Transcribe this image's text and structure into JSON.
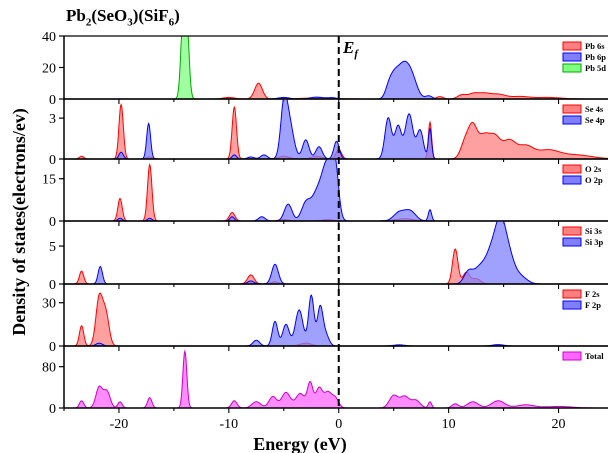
{
  "chart_data": {
    "type": "area",
    "title": {
      "base": "Pb",
      "sub1": "2",
      "mid1": "(SeO",
      "sub2": "3",
      "mid2": ")(SiF",
      "sub3": "6",
      "end": ")"
    },
    "xlabel": "Energy (eV)",
    "ylabel": "Density of states(electrons/ev)",
    "fermi_label": {
      "main": "E",
      "sub": "f"
    },
    "xlim": [
      -25,
      24.5
    ],
    "x_ticks": [
      -20,
      -10,
      0,
      10,
      20
    ],
    "panels": [
      {
        "ylim": [
          0,
          40
        ],
        "yticks": [
          0,
          20,
          40
        ],
        "series": [
          {
            "name": "Pb 6s",
            "color": "#ff0000",
            "fill": "#ff8080",
            "peaks": [
              [
                -7.3,
                10,
                0.35
              ],
              [
                -10,
                1,
                0.5
              ],
              [
                -2,
                0.6,
                1.5
              ],
              [
                9.2,
                1.5,
                0.3
              ],
              [
                11.2,
                2.5,
                0.4
              ],
              [
                12.3,
                3.5,
                0.5
              ],
              [
                13.3,
                2.8,
                0.5
              ],
              [
                14.5,
                3,
                0.7
              ],
              [
                16.5,
                1.5,
                0.8
              ],
              [
                19,
                1,
                1.2
              ]
            ]
          },
          {
            "name": "Pb 6p",
            "color": "#0000ff",
            "fill": "#8080ff",
            "peaks": [
              [
                5,
                12,
                0.4
              ],
              [
                5.8,
                18,
                0.5
              ],
              [
                6.6,
                14,
                0.5
              ],
              [
                4.5,
                5,
                0.3
              ],
              [
                8.2,
                2,
                0.3
              ],
              [
                -5,
                1,
                0.5
              ],
              [
                -2,
                1.2,
                0.6
              ],
              [
                -0.6,
                0.8,
                0.4
              ]
            ]
          },
          {
            "name": "Pb 5d",
            "color": "#00aa00",
            "fill": "#80ff80",
            "peaks": [
              [
                -14,
                45,
                0.15
              ],
              [
                -14.2,
                40,
                0.2
              ],
              [
                -13.8,
                40,
                0.2
              ]
            ]
          }
        ]
      },
      {
        "ylim": [
          0,
          4.4
        ],
        "yticks": [
          0,
          3
        ],
        "series": [
          {
            "name": "Se 4s",
            "color": "#ff0000",
            "fill": "#ff8080",
            "peaks": [
              [
                -19.8,
                4,
                0.2
              ],
              [
                -9.5,
                3.8,
                0.2
              ],
              [
                -23.4,
                0.2,
                0.2
              ],
              [
                -17.2,
                0.15,
                0.3
              ],
              [
                -5,
                0.2,
                0.5
              ],
              [
                -2,
                0.2,
                0.5
              ],
              [
                0,
                0.7,
                0.25
              ],
              [
                8.3,
                2.7,
                0.15
              ],
              [
                11.5,
                1.2,
                0.4
              ],
              [
                12.2,
                2.2,
                0.4
              ],
              [
                13.2,
                1.6,
                0.5
              ],
              [
                14.2,
                1.5,
                0.5
              ],
              [
                15.5,
                1.3,
                0.6
              ],
              [
                17,
                0.9,
                0.7
              ],
              [
                19,
                0.6,
                1
              ],
              [
                21.5,
                0.3,
                1.5
              ]
            ]
          },
          {
            "name": "Se 4p",
            "color": "#0000ff",
            "fill": "#8080ff",
            "peaks": [
              [
                -17.3,
                2.6,
                0.18
              ],
              [
                -19.8,
                0.5,
                0.2
              ],
              [
                -9.5,
                0.3,
                0.2
              ],
              [
                -5,
                3.4,
                0.3
              ],
              [
                -4.5,
                2.6,
                0.4
              ],
              [
                -3,
                1.4,
                0.3
              ],
              [
                -1.8,
                0.9,
                0.3
              ],
              [
                -0.2,
                1.3,
                0.25
              ],
              [
                -6.8,
                0.3,
                0.3
              ],
              [
                4.5,
                3,
                0.3
              ],
              [
                5.4,
                2.4,
                0.3
              ],
              [
                6.4,
                3.3,
                0.35
              ],
              [
                7.4,
                2.1,
                0.3
              ],
              [
                8.3,
                2.2,
                0.15
              ],
              [
                -8,
                0.15,
                0.3
              ]
            ]
          }
        ]
      },
      {
        "ylim": [
          0,
          22
        ],
        "yticks": [
          0,
          15
        ],
        "series": [
          {
            "name": "O 2s",
            "color": "#ff0000",
            "fill": "#ff8080",
            "peaks": [
              [
                -17.2,
                20,
                0.2
              ],
              [
                -19.9,
                8,
                0.2
              ],
              [
                -9.7,
                3,
                0.25
              ],
              [
                -5,
                0.5,
                0.5
              ],
              [
                -1,
                0.5,
                0.5
              ],
              [
                6,
                0.8,
                0.8
              ]
            ]
          },
          {
            "name": "O 2p",
            "color": "#0000ff",
            "fill": "#8080ff",
            "peaks": [
              [
                -1,
                20,
                0.5
              ],
              [
                -0.3,
                15,
                0.3
              ],
              [
                -2,
                9,
                0.5
              ],
              [
                -3,
                6,
                0.4
              ],
              [
                -4.6,
                6,
                0.35
              ],
              [
                -7,
                1.5,
                0.3
              ],
              [
                -9.7,
                1.5,
                0.2
              ],
              [
                -17.2,
                1,
                0.2
              ],
              [
                -19.9,
                1,
                0.2
              ],
              [
                5.5,
                3,
                0.5
              ],
              [
                6.5,
                3.5,
                0.5
              ],
              [
                8.3,
                4,
                0.15
              ]
            ]
          }
        ]
      },
      {
        "ylim": [
          0,
          8.3
        ],
        "yticks": [
          0,
          5
        ],
        "series": [
          {
            "name": "Si 3s",
            "color": "#ff0000",
            "fill": "#ff8080",
            "peaks": [
              [
                -23.4,
                1.7,
                0.2
              ],
              [
                -8,
                1.2,
                0.3
              ],
              [
                -5.8,
                0.3,
                0.3
              ],
              [
                10.6,
                4.6,
                0.25
              ],
              [
                11.6,
                1.5,
                0.3
              ],
              [
                12.5,
                0.7,
                0.4
              ]
            ]
          },
          {
            "name": "Si 3p",
            "color": "#0000ff",
            "fill": "#8080ff",
            "peaks": [
              [
                -21.7,
                2.3,
                0.2
              ],
              [
                -5.8,
                2.6,
                0.3
              ],
              [
                -8,
                0.4,
                0.3
              ],
              [
                11.8,
                1.6,
                0.4
              ],
              [
                12.8,
                2,
                0.5
              ],
              [
                13.8,
                3.5,
                0.5
              ],
              [
                14.7,
                7.5,
                0.5
              ],
              [
                15.5,
                3,
                0.5
              ],
              [
                16.5,
                1,
                0.6
              ]
            ]
          }
        ]
      },
      {
        "ylim": [
          0,
          43
        ],
        "yticks": [
          0,
          30
        ],
        "series": [
          {
            "name": "F 2s",
            "color": "#ff0000",
            "fill": "#ff8080",
            "peaks": [
              [
                -23.4,
                14,
                0.2
              ],
              [
                -21.8,
                33,
                0.3
              ],
              [
                -21.2,
                22,
                0.3
              ],
              [
                -3,
                2,
                0.5
              ]
            ]
          },
          {
            "name": "F 2p",
            "color": "#0000ff",
            "fill": "#8080ff",
            "peaks": [
              [
                -7.5,
                4,
                0.3
              ],
              [
                -5.8,
                17,
                0.25
              ],
              [
                -4.8,
                15,
                0.3
              ],
              [
                -3.6,
                25,
                0.35
              ],
              [
                -2.5,
                35,
                0.25
              ],
              [
                -1.7,
                26,
                0.25
              ],
              [
                -1.2,
                8,
                0.3
              ],
              [
                -21.8,
                2,
                0.3
              ],
              [
                5.5,
                0.8,
                0.5
              ],
              [
                14.5,
                1,
                0.5
              ]
            ]
          }
        ]
      },
      {
        "ylim": [
          0,
          120
        ],
        "yticks": [
          0,
          80
        ],
        "series": [
          {
            "name": "Total",
            "color": "#cc00cc",
            "fill": "#ff66ff",
            "peaks": [
              [
                -23.4,
                14,
                0.2
              ],
              [
                -21.8,
                40,
                0.3
              ],
              [
                -21.1,
                32,
                0.3
              ],
              [
                -19.9,
                12,
                0.2
              ],
              [
                -17.2,
                20,
                0.2
              ],
              [
                -14,
                110,
                0.18
              ],
              [
                -9.5,
                14,
                0.25
              ],
              [
                -7.5,
                12,
                0.4
              ],
              [
                -6,
                22,
                0.35
              ],
              [
                -4.8,
                30,
                0.4
              ],
              [
                -3.5,
                28,
                0.4
              ],
              [
                -2.6,
                48,
                0.25
              ],
              [
                -1.8,
                38,
                0.3
              ],
              [
                -1,
                30,
                0.35
              ],
              [
                -0.3,
                18,
                0.3
              ],
              [
                5,
                24,
                0.4
              ],
              [
                6,
                22,
                0.4
              ],
              [
                7,
                15,
                0.4
              ],
              [
                8.3,
                12,
                0.15
              ],
              [
                10.6,
                8,
                0.3
              ],
              [
                12.2,
                12,
                0.5
              ],
              [
                14.5,
                14,
                0.6
              ],
              [
                17,
                6,
                0.8
              ],
              [
                20,
                3,
                1.2
              ]
            ]
          }
        ]
      }
    ]
  }
}
